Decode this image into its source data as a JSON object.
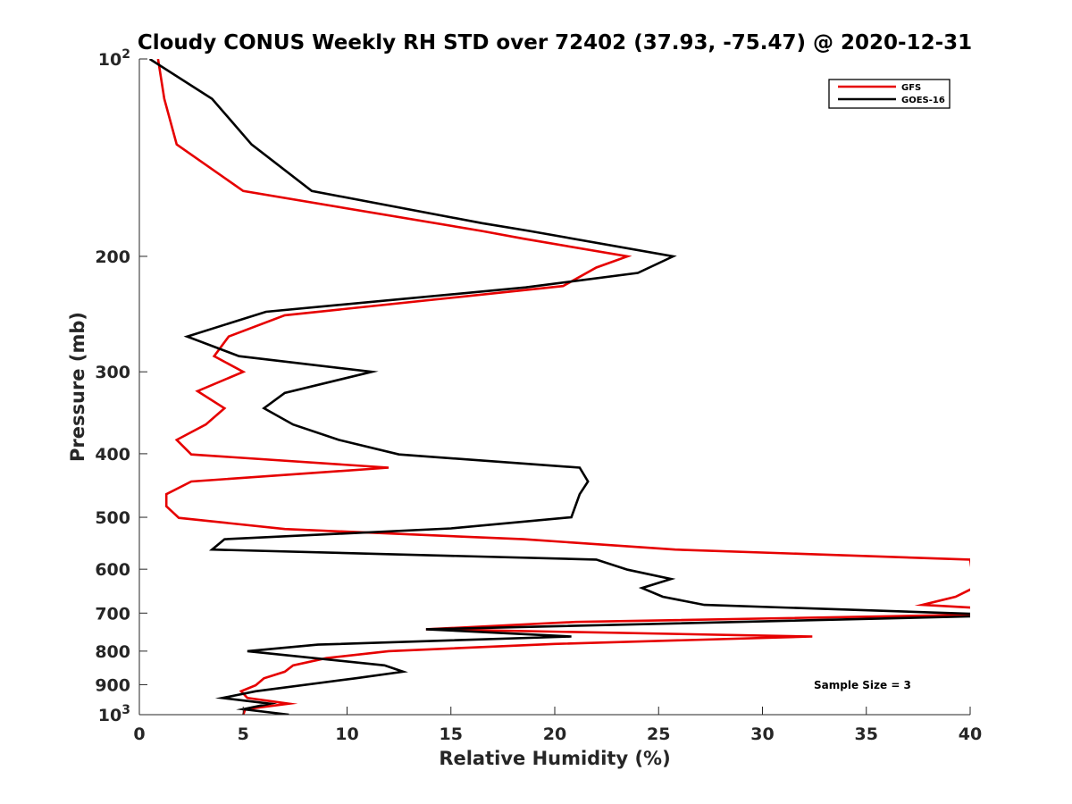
{
  "chart_data": {
    "type": "line",
    "title": "Cloudy CONUS Weekly RH STD over 72402 (37.93, -75.47) @ 2020-12-31",
    "xlabel": "Relative Humidity (%)",
    "ylabel": "Pressure (mb)",
    "xlim": [
      0,
      40
    ],
    "ylim": [
      100,
      1000
    ],
    "y_scale": "log",
    "y_reversed": true,
    "x_ticks": [
      0,
      5,
      10,
      15,
      20,
      25,
      30,
      35,
      40
    ],
    "x_tick_labels": [
      "0",
      "5",
      "10",
      "15",
      "20",
      "25",
      "30",
      "35",
      "40"
    ],
    "y_ticks": [
      100,
      200,
      300,
      400,
      500,
      600,
      700,
      800,
      900,
      1000
    ],
    "y_tick_labels": [
      {
        "base": "10",
        "exp": "2"
      },
      {
        "base": "200",
        "exp": ""
      },
      {
        "base": "300",
        "exp": ""
      },
      {
        "base": "400",
        "exp": ""
      },
      {
        "base": "500",
        "exp": ""
      },
      {
        "base": "600",
        "exp": ""
      },
      {
        "base": "700",
        "exp": ""
      },
      {
        "base": "800",
        "exp": ""
      },
      {
        "base": "900",
        "exp": ""
      },
      {
        "base": "10",
        "exp": "3"
      }
    ],
    "grid": false,
    "legend_position": "top-right",
    "annotation": "Sample Size = 3",
    "series": [
      {
        "name": "GFS",
        "color": "#e60000",
        "points": [
          [
            0.9,
            100
          ],
          [
            1.2,
            115
          ],
          [
            1.8,
            135
          ],
          [
            5.0,
            159
          ],
          [
            16.5,
            183
          ],
          [
            18.5,
            188
          ],
          [
            23.5,
            200
          ],
          [
            22.0,
            208
          ],
          [
            20.4,
            222
          ],
          [
            7.0,
            246
          ],
          [
            4.3,
            265
          ],
          [
            3.6,
            284
          ],
          [
            5.0,
            300
          ],
          [
            2.8,
            321
          ],
          [
            4.1,
            341
          ],
          [
            3.2,
            361
          ],
          [
            1.8,
            381
          ],
          [
            2.5,
            401
          ],
          [
            12.0,
            420
          ],
          [
            2.5,
            441
          ],
          [
            1.3,
            461
          ],
          [
            1.3,
            481
          ],
          [
            1.9,
            501
          ],
          [
            7.0,
            521
          ],
          [
            18.5,
            540
          ],
          [
            25.8,
            560
          ],
          [
            40.0,
            580
          ],
          [
            40.2,
            640
          ],
          [
            39.3,
            661
          ],
          [
            37.7,
            680
          ],
          [
            40.2,
            687
          ],
          [
            40.2,
            704
          ],
          [
            21.0,
            722
          ],
          [
            13.8,
            741
          ],
          [
            32.4,
            760
          ],
          [
            20.0,
            780
          ],
          [
            12.0,
            800
          ],
          [
            9.0,
            820
          ],
          [
            7.4,
            841
          ],
          [
            7.0,
            860
          ],
          [
            6.0,
            880
          ],
          [
            5.6,
            902
          ],
          [
            4.9,
            921
          ],
          [
            5.2,
            943
          ],
          [
            7.2,
            962
          ],
          [
            5.1,
            981
          ],
          [
            5.0,
            1000
          ]
        ]
      },
      {
        "name": "GOES-16",
        "color": "#000000",
        "points": [
          [
            0.5,
            100
          ],
          [
            3.5,
            115
          ],
          [
            5.4,
            135
          ],
          [
            8.3,
            159
          ],
          [
            16.5,
            178
          ],
          [
            18.8,
            183
          ],
          [
            25.7,
            200
          ],
          [
            24.0,
            212
          ],
          [
            18.6,
            223
          ],
          [
            6.1,
            243
          ],
          [
            2.3,
            265
          ],
          [
            4.8,
            284
          ],
          [
            11.2,
            300
          ],
          [
            7.0,
            323
          ],
          [
            6.0,
            341
          ],
          [
            7.4,
            361
          ],
          [
            9.6,
            381
          ],
          [
            12.5,
            401
          ],
          [
            21.2,
            420
          ],
          [
            21.6,
            441
          ],
          [
            21.2,
            461
          ],
          [
            20.8,
            500
          ],
          [
            15.0,
            520
          ],
          [
            4.1,
            540
          ],
          [
            3.5,
            560
          ],
          [
            22.0,
            580
          ],
          [
            23.5,
            601
          ],
          [
            25.6,
            621
          ],
          [
            24.2,
            641
          ],
          [
            25.2,
            661
          ],
          [
            27.2,
            680
          ],
          [
            40.2,
            702
          ],
          [
            40.2,
            708
          ],
          [
            13.8,
            741
          ],
          [
            20.8,
            760
          ],
          [
            8.6,
            782
          ],
          [
            5.2,
            800
          ],
          [
            11.8,
            841
          ],
          [
            12.7,
            860
          ],
          [
            10.4,
            880
          ],
          [
            5.6,
            921
          ],
          [
            4.0,
            943
          ],
          [
            6.3,
            962
          ],
          [
            5.0,
            981
          ],
          [
            7.2,
            1000
          ]
        ]
      }
    ]
  }
}
